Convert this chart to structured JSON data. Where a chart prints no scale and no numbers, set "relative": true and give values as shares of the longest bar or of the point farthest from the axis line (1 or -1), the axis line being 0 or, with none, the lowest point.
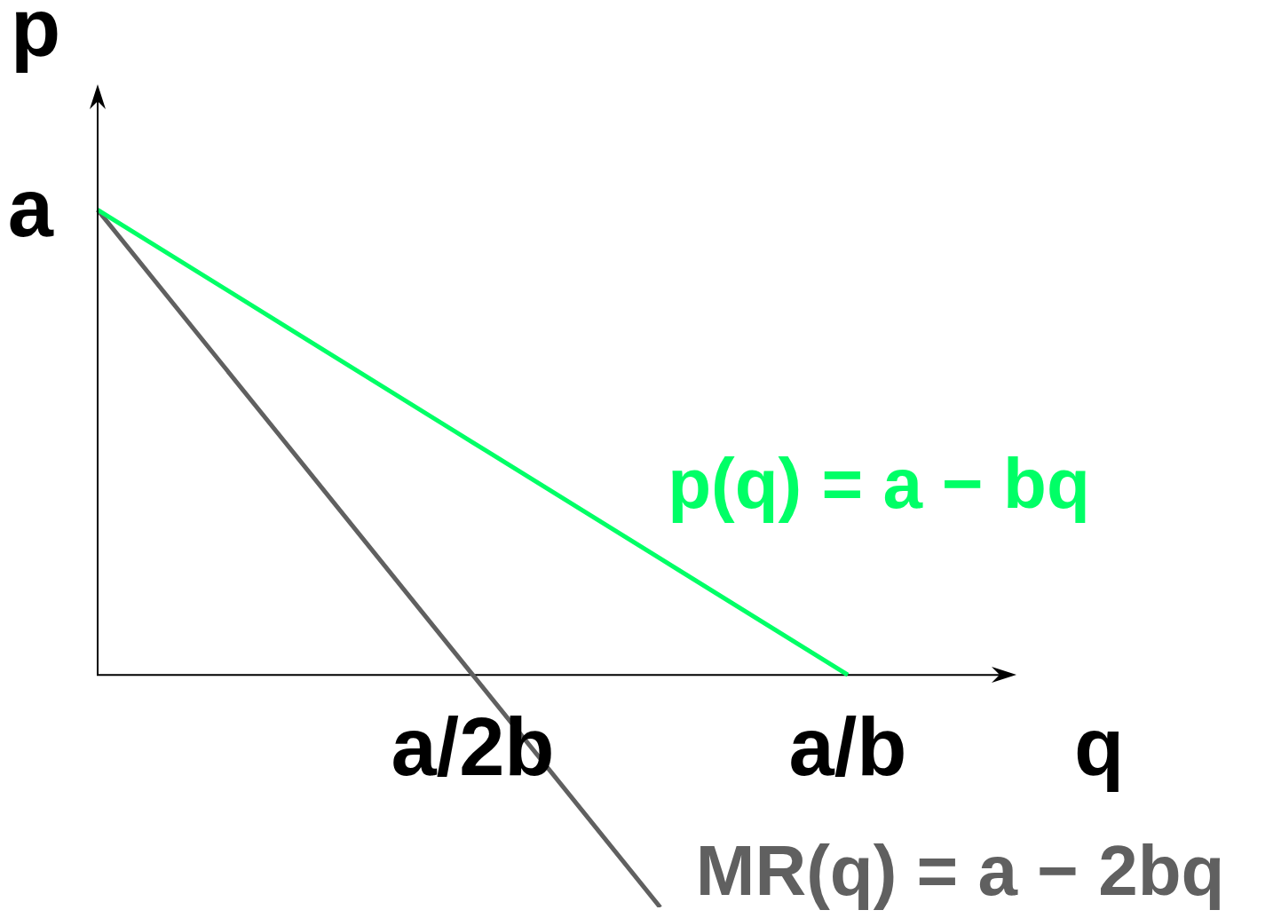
{
  "chart_data": {
    "type": "line",
    "relative": true,
    "xlabel": "q",
    "ylabel": "p",
    "categories": [
      null,
      null,
      "a/2b",
      null,
      "a/b"
    ],
    "series": [
      {
        "name": "p(q) = a − bq",
        "color": "#00ff66",
        "values": [
          1,
          0.75,
          0.5,
          0.25,
          0
        ]
      },
      {
        "name": "MR(q) = a − 2bq",
        "color": "#606060",
        "values": [
          1,
          0.5,
          0,
          -0.5,
          null
        ]
      }
    ],
    "annotations": [
      "a"
    ]
  }
}
